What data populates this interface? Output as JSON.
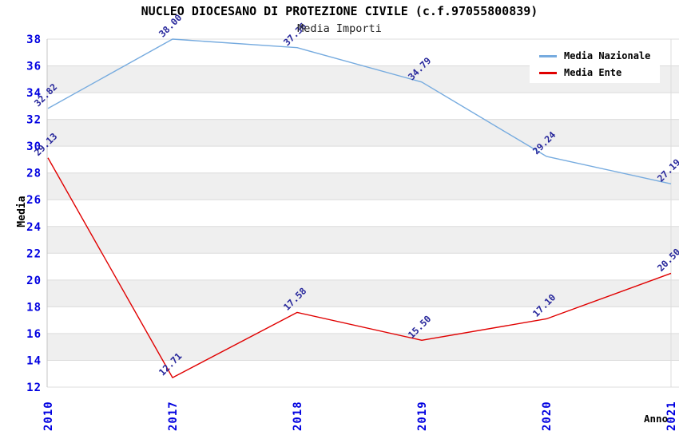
{
  "title": "NUCLEO DIOCESANO DI PROTEZIONE CIVILE (c.f.97055800839)",
  "subtitle": "Media Importi",
  "chart_data": {
    "type": "line",
    "x_categories": [
      "2010",
      "2017",
      "2018",
      "2019",
      "2020",
      "2021"
    ],
    "series": [
      {
        "name": "Media Nazionale",
        "color": "#76ABDF",
        "values": [
          32.82,
          38.0,
          37.36,
          34.79,
          29.24,
          27.19
        ],
        "labels": [
          "32.82",
          "38.00",
          "37.36",
          "34.79",
          "29.24",
          "27.19"
        ]
      },
      {
        "name": "Media Ente",
        "color": "#E00000",
        "values": [
          29.13,
          12.71,
          17.58,
          15.5,
          17.1,
          20.5
        ],
        "labels": [
          "29.13",
          "12.71",
          "17.58",
          "15.50",
          "17.10",
          "20.50"
        ]
      }
    ],
    "xlabel": "Anno",
    "ylabel": "Media",
    "ylim": [
      12,
      38
    ],
    "ytick_step": 2,
    "yticks": [
      12,
      14,
      16,
      18,
      20,
      22,
      24,
      26,
      28,
      30,
      32,
      34,
      36,
      38
    ],
    "grid": true,
    "legend_position": "top-right",
    "styles": {
      "tick_color": "#0000E0",
      "point_label_color": "#26269B",
      "band_color": "#EFEFEF",
      "grid_color": "#DCDCDC",
      "axis_color": "#C6C6C6"
    }
  }
}
